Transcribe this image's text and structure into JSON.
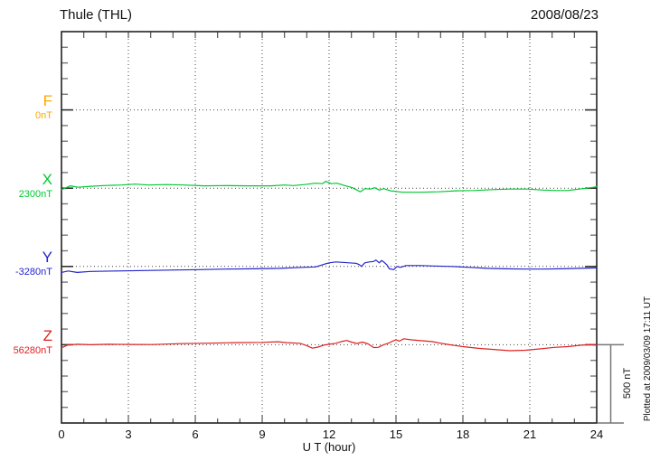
{
  "header": {
    "title": "Thule (THL)",
    "date": "2008/08/23"
  },
  "components": [
    {
      "id": "F",
      "label": "F",
      "value": "0nT",
      "color": "#FFA500"
    },
    {
      "id": "X",
      "label": "X",
      "value": "2300nT",
      "color": "#00C832"
    },
    {
      "id": "Y",
      "label": "Y",
      "value": "-3280nT",
      "color": "#2424CC"
    },
    {
      "id": "Z",
      "label": "Z",
      "value": "56280nT",
      "color": "#DD2222"
    }
  ],
  "x_axis": {
    "label": "U T (hour)",
    "ticks": [
      0,
      3,
      6,
      9,
      12,
      15,
      18,
      21,
      24
    ],
    "minor_step": 1,
    "range": [
      0,
      24
    ]
  },
  "scale_bar": {
    "label": "500 nT",
    "nT": 500
  },
  "side_note": "Plotted at 2009/03/09 17:11 UT",
  "chart_data": {
    "type": "line",
    "title": "Thule (THL) magnetogram",
    "date": "2008/08/23",
    "xlabel": "U T (hour)",
    "x_range": [
      0,
      24
    ],
    "grid": "dotted vertical lines every 3 h; dotted horizontal baseline per component",
    "nT_per_division": 100,
    "component_offset_nT": 500,
    "scale_bar_nT": 500,
    "series": [
      {
        "name": "F",
        "baseline_label": "0nT",
        "color": "#FFA500",
        "points": []
      },
      {
        "name": "X",
        "baseline_label": "2300nT",
        "color": "#00C832",
        "points": [
          [
            0,
            -9
          ],
          [
            0.4,
            15
          ],
          [
            0.75,
            6
          ],
          [
            1.3,
            12
          ],
          [
            1.9,
            17
          ],
          [
            2.7,
            20
          ],
          [
            3.3,
            26
          ],
          [
            3.9,
            20
          ],
          [
            4.7,
            23
          ],
          [
            5.5,
            20
          ],
          [
            6.4,
            15
          ],
          [
            7.4,
            17
          ],
          [
            8.4,
            15
          ],
          [
            9.4,
            15
          ],
          [
            10,
            20
          ],
          [
            10.4,
            17
          ],
          [
            10.9,
            23
          ],
          [
            11.4,
            32
          ],
          [
            11.7,
            29
          ],
          [
            11.85,
            44
          ],
          [
            12.1,
            29
          ],
          [
            12.35,
            32
          ],
          [
            12.7,
            17
          ],
          [
            13.05,
            3
          ],
          [
            13.4,
            -23
          ],
          [
            13.6,
            -3
          ],
          [
            13.85,
            -6
          ],
          [
            14.05,
            3
          ],
          [
            14.25,
            -12
          ],
          [
            14.45,
            -3
          ],
          [
            14.75,
            -17
          ],
          [
            15.3,
            -26
          ],
          [
            16.1,
            -26
          ],
          [
            16.9,
            -23
          ],
          [
            17.7,
            -17
          ],
          [
            18.5,
            -15
          ],
          [
            19.3,
            -9
          ],
          [
            20.1,
            -6
          ],
          [
            20.9,
            -6
          ],
          [
            21.6,
            -12
          ],
          [
            22.2,
            -15
          ],
          [
            22.7,
            -15
          ],
          [
            23.2,
            -6
          ],
          [
            23.6,
            0
          ],
          [
            24,
            9
          ]
        ]
      },
      {
        "name": "Y",
        "baseline_label": "-3280nT",
        "color": "#2424CC",
        "points": [
          [
            0,
            -38
          ],
          [
            0.3,
            -29
          ],
          [
            0.7,
            -38
          ],
          [
            1.3,
            -32
          ],
          [
            2.5,
            -29
          ],
          [
            3.7,
            -26
          ],
          [
            4.9,
            -23
          ],
          [
            6.2,
            -20
          ],
          [
            7.4,
            -17
          ],
          [
            8.6,
            -15
          ],
          [
            9.8,
            -12
          ],
          [
            10.8,
            -6
          ],
          [
            11.4,
            -3
          ],
          [
            11.8,
            15
          ],
          [
            12,
            23
          ],
          [
            12.3,
            29
          ],
          [
            12.6,
            26
          ],
          [
            12.9,
            23
          ],
          [
            13.2,
            20
          ],
          [
            13.35,
            12
          ],
          [
            13.45,
            0
          ],
          [
            13.6,
            23
          ],
          [
            13.8,
            29
          ],
          [
            14,
            32
          ],
          [
            14.1,
            41
          ],
          [
            14.25,
            23
          ],
          [
            14.35,
            38
          ],
          [
            14.45,
            29
          ],
          [
            14.6,
            9
          ],
          [
            14.7,
            -15
          ],
          [
            14.9,
            -20
          ],
          [
            15.05,
            0
          ],
          [
            15.2,
            -6
          ],
          [
            15.45,
            6
          ],
          [
            16.1,
            6
          ],
          [
            16.7,
            3
          ],
          [
            17.5,
            0
          ],
          [
            18.3,
            -6
          ],
          [
            19.1,
            -12
          ],
          [
            19.9,
            -15
          ],
          [
            20.8,
            -17
          ],
          [
            21.6,
            -17
          ],
          [
            22.4,
            -15
          ],
          [
            23.2,
            -12
          ],
          [
            24,
            -9
          ]
        ]
      },
      {
        "name": "Z",
        "baseline_label": "56280nT",
        "color": "#DD2222",
        "points": [
          [
            0,
            -20
          ],
          [
            0.25,
            -3
          ],
          [
            0.7,
            3
          ],
          [
            1.3,
            0
          ],
          [
            2.1,
            3
          ],
          [
            3.1,
            2
          ],
          [
            4.1,
            1
          ],
          [
            5.3,
            7
          ],
          [
            6.6,
            10
          ],
          [
            7.8,
            13
          ],
          [
            9,
            15
          ],
          [
            9.7,
            19
          ],
          [
            10.1,
            13
          ],
          [
            10.7,
            9
          ],
          [
            11,
            -6
          ],
          [
            11.25,
            -22
          ],
          [
            11.5,
            -15
          ],
          [
            11.75,
            -3
          ],
          [
            12,
            3
          ],
          [
            12.3,
            9
          ],
          [
            12.55,
            20
          ],
          [
            12.8,
            27
          ],
          [
            13,
            17
          ],
          [
            13.25,
            8
          ],
          [
            13.5,
            17
          ],
          [
            13.75,
            5
          ],
          [
            14,
            -18
          ],
          [
            14.2,
            -17
          ],
          [
            14.45,
            0
          ],
          [
            14.7,
            12
          ],
          [
            14.85,
            23
          ],
          [
            15,
            32
          ],
          [
            15.15,
            23
          ],
          [
            15.35,
            38
          ],
          [
            15.7,
            31
          ],
          [
            16.1,
            26
          ],
          [
            16.6,
            20
          ],
          [
            17,
            10
          ],
          [
            17.4,
            0
          ],
          [
            18,
            -12
          ],
          [
            18.7,
            -23
          ],
          [
            19.5,
            -32
          ],
          [
            20.1,
            -38
          ],
          [
            20.8,
            -35
          ],
          [
            21.5,
            -26
          ],
          [
            22.1,
            -17
          ],
          [
            22.7,
            -12
          ],
          [
            23.3,
            -3
          ],
          [
            23.7,
            0
          ],
          [
            24,
            -3
          ]
        ]
      }
    ]
  }
}
